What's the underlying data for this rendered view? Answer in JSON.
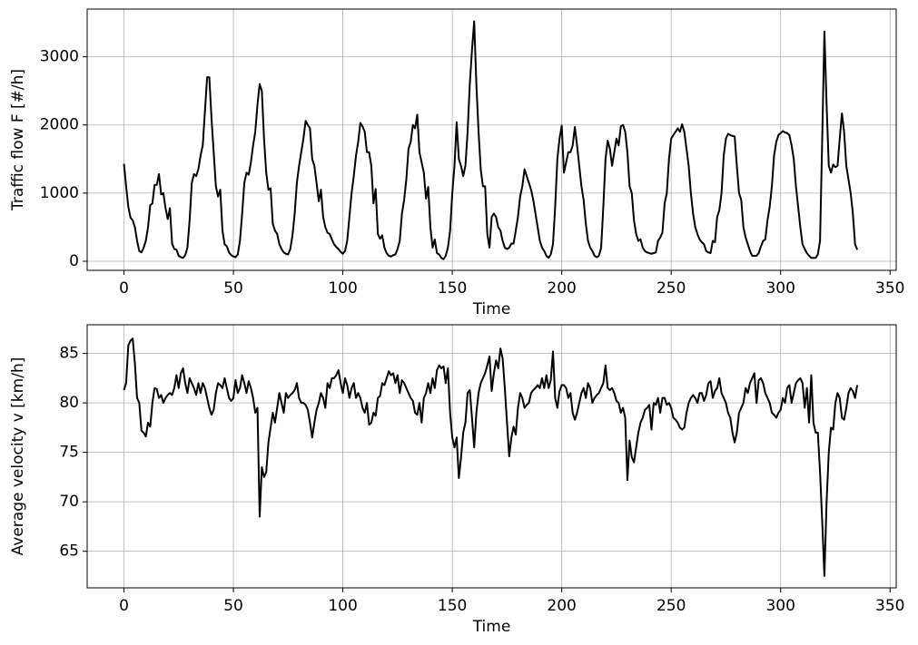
{
  "chart_data": [
    {
      "type": "line",
      "xlabel": "Time",
      "ylabel": "Traffic flow F [#/h]",
      "color": "#000000",
      "grid": true,
      "xlim": [
        -16.8,
        352.8
      ],
      "ylim": [
        -133,
        3700
      ],
      "xticks": [
        0,
        50,
        100,
        150,
        200,
        250,
        300,
        350
      ],
      "yticks": [
        0,
        1000,
        2000,
        3000
      ],
      "x": [
        0,
        1,
        2,
        3,
        4,
        5,
        6,
        7,
        8,
        9,
        10,
        11,
        12,
        13,
        14,
        15,
        16,
        17,
        18,
        19,
        20,
        21,
        22,
        23,
        24,
        25,
        26,
        27,
        28,
        29,
        30,
        31,
        32,
        33,
        34,
        35,
        36,
        37,
        38,
        39,
        40,
        41,
        42,
        43,
        44,
        45,
        46,
        47,
        48,
        49,
        50,
        51,
        52,
        53,
        54,
        55,
        56,
        57,
        58,
        59,
        60,
        61,
        62,
        63,
        64,
        65,
        66,
        67,
        68,
        69,
        70,
        71,
        72,
        73,
        74,
        75,
        76,
        77,
        78,
        79,
        80,
        81,
        82,
        83,
        84,
        85,
        86,
        87,
        88,
        89,
        90,
        91,
        92,
        93,
        94,
        95,
        96,
        97,
        98,
        99,
        100,
        101,
        102,
        103,
        104,
        105,
        106,
        107,
        108,
        109,
        110,
        111,
        112,
        113,
        114,
        115,
        116,
        117,
        118,
        119,
        120,
        121,
        122,
        123,
        124,
        125,
        126,
        127,
        128,
        129,
        130,
        131,
        132,
        133,
        134,
        135,
        136,
        137,
        138,
        139,
        140,
        141,
        142,
        143,
        144,
        145,
        146,
        147,
        148,
        149,
        150,
        151,
        152,
        153,
        154,
        155,
        156,
        157,
        158,
        159,
        160,
        161,
        162,
        163,
        164,
        165,
        166,
        167,
        168,
        169,
        170,
        171,
        172,
        173,
        174,
        175,
        176,
        177,
        178,
        179,
        180,
        181,
        182,
        183,
        184,
        185,
        186,
        187,
        188,
        189,
        190,
        191,
        192,
        193,
        194,
        195,
        196,
        197,
        198,
        199,
        200,
        201,
        202,
        203,
        204,
        205,
        206,
        207,
        208,
        209,
        210,
        211,
        212,
        213,
        214,
        215,
        216,
        217,
        218,
        219,
        220,
        221,
        222,
        223,
        224,
        225,
        226,
        227,
        228,
        229,
        230,
        231,
        232,
        233,
        234,
        235,
        236,
        237,
        238,
        239,
        240,
        241,
        242,
        243,
        244,
        245,
        246,
        247,
        248,
        249,
        250,
        251,
        252,
        253,
        254,
        255,
        256,
        257,
        258,
        259,
        260,
        261,
        262,
        263,
        264,
        265,
        266,
        267,
        268,
        269,
        270,
        271,
        272,
        273,
        274,
        275,
        276,
        277,
        278,
        279,
        280,
        281,
        282,
        283,
        284,
        285,
        286,
        287,
        288,
        289,
        290,
        291,
        292,
        293,
        294,
        295,
        296,
        297,
        298,
        299,
        300,
        301,
        302,
        303,
        304,
        305,
        306,
        307,
        308,
        309,
        310,
        311,
        312,
        313,
        314,
        315,
        316,
        317,
        318,
        319,
        320,
        321,
        322,
        323,
        324,
        325,
        326,
        327,
        328,
        329,
        330,
        331,
        332,
        333,
        334,
        335
      ],
      "values": [
        1430,
        1100,
        800,
        640,
        600,
        500,
        300,
        150,
        130,
        200,
        300,
        500,
        820,
        850,
        1120,
        1120,
        1280,
        980,
        1000,
        780,
        620,
        780,
        260,
        180,
        170,
        80,
        60,
        50,
        90,
        200,
        600,
        1150,
        1280,
        1250,
        1350,
        1550,
        1700,
        2200,
        2700,
        2700,
        2100,
        1600,
        1100,
        950,
        1050,
        450,
        250,
        220,
        130,
        90,
        70,
        60,
        100,
        300,
        700,
        1150,
        1300,
        1270,
        1450,
        1700,
        1900,
        2300,
        2600,
        2500,
        1800,
        1300,
        1050,
        1070,
        550,
        450,
        400,
        250,
        180,
        130,
        110,
        100,
        180,
        380,
        700,
        1150,
        1400,
        1600,
        1800,
        2060,
        2000,
        1950,
        1500,
        1400,
        1150,
        880,
        1050,
        650,
        500,
        420,
        400,
        320,
        250,
        210,
        180,
        140,
        110,
        150,
        300,
        650,
        1000,
        1250,
        1550,
        1750,
        2030,
        1980,
        1900,
        1600,
        1600,
        1400,
        850,
        1060,
        400,
        330,
        380,
        200,
        120,
        80,
        70,
        90,
        100,
        180,
        300,
        700,
        900,
        1200,
        1650,
        1750,
        2000,
        1950,
        2150,
        1600,
        1450,
        1300,
        920,
        1090,
        500,
        200,
        320,
        120,
        100,
        50,
        30,
        80,
        200,
        450,
        1000,
        1400,
        2040,
        1500,
        1400,
        1250,
        1400,
        1900,
        2600,
        3100,
        3520,
        2600,
        1900,
        1350,
        1100,
        1100,
        400,
        200,
        650,
        700,
        650,
        500,
        450,
        300,
        200,
        180,
        200,
        260,
        260,
        450,
        650,
        950,
        1100,
        1350,
        1250,
        1150,
        1050,
        900,
        700,
        500,
        300,
        200,
        150,
        80,
        50,
        100,
        250,
        800,
        1500,
        1800,
        1990,
        1300,
        1450,
        1600,
        1600,
        1700,
        1970,
        1700,
        1400,
        1100,
        900,
        550,
        300,
        200,
        150,
        80,
        60,
        80,
        200,
        800,
        1500,
        1770,
        1650,
        1400,
        1600,
        1800,
        1700,
        1980,
        2000,
        1900,
        1600,
        1100,
        1000,
        600,
        400,
        300,
        320,
        200,
        150,
        130,
        120,
        110,
        120,
        130,
        300,
        350,
        420,
        850,
        1000,
        1500,
        1800,
        1850,
        1900,
        1950,
        1900,
        2010,
        1900,
        1650,
        1400,
        1000,
        700,
        500,
        400,
        320,
        280,
        250,
        150,
        130,
        120,
        300,
        280,
        650,
        750,
        1000,
        1550,
        1800,
        1870,
        1850,
        1840,
        1830,
        1400,
        1000,
        900,
        500,
        350,
        250,
        150,
        80,
        80,
        80,
        120,
        220,
        300,
        320,
        600,
        800,
        1100,
        1550,
        1750,
        1850,
        1880,
        1910,
        1890,
        1880,
        1850,
        1700,
        1500,
        1100,
        800,
        500,
        250,
        180,
        120,
        80,
        50,
        50,
        50,
        100,
        300,
        1800,
        3370,
        2300,
        1400,
        1300,
        1420,
        1380,
        1400,
        1800,
        2170,
        1900,
        1400,
        1200,
        1000,
        700,
        250,
        170
      ]
    },
    {
      "type": "line",
      "xlabel": "Time",
      "ylabel": "Average velocity v [km/h]",
      "color": "#000000",
      "grid": true,
      "xlim": [
        -16.8,
        352.8
      ],
      "ylim": [
        61.3,
        87.9
      ],
      "xticks": [
        0,
        50,
        100,
        150,
        200,
        250,
        300,
        350
      ],
      "yticks": [
        65,
        70,
        75,
        80,
        85
      ],
      "x": [
        0,
        1,
        2,
        3,
        4,
        5,
        6,
        7,
        8,
        9,
        10,
        11,
        12,
        13,
        14,
        15,
        16,
        17,
        18,
        19,
        20,
        21,
        22,
        23,
        24,
        25,
        26,
        27,
        28,
        29,
        30,
        31,
        32,
        33,
        34,
        35,
        36,
        37,
        38,
        39,
        40,
        41,
        42,
        43,
        44,
        45,
        46,
        47,
        48,
        49,
        50,
        51,
        52,
        53,
        54,
        55,
        56,
        57,
        58,
        59,
        60,
        61,
        62,
        63,
        64,
        65,
        66,
        67,
        68,
        69,
        70,
        71,
        72,
        73,
        74,
        75,
        76,
        77,
        78,
        79,
        80,
        81,
        82,
        83,
        84,
        85,
        86,
        87,
        88,
        89,
        90,
        91,
        92,
        93,
        94,
        95,
        96,
        97,
        98,
        99,
        100,
        101,
        102,
        103,
        104,
        105,
        106,
        107,
        108,
        109,
        110,
        111,
        112,
        113,
        114,
        115,
        116,
        117,
        118,
        119,
        120,
        121,
        122,
        123,
        124,
        125,
        126,
        127,
        128,
        129,
        130,
        131,
        132,
        133,
        134,
        135,
        136,
        137,
        138,
        139,
        140,
        141,
        142,
        143,
        144,
        145,
        146,
        147,
        148,
        149,
        150,
        151,
        152,
        153,
        154,
        155,
        156,
        157,
        158,
        159,
        160,
        161,
        162,
        163,
        164,
        165,
        166,
        167,
        168,
        169,
        170,
        171,
        172,
        173,
        174,
        175,
        176,
        177,
        178,
        179,
        180,
        181,
        182,
        183,
        184,
        185,
        186,
        187,
        188,
        189,
        190,
        191,
        192,
        193,
        194,
        195,
        196,
        197,
        198,
        199,
        200,
        201,
        202,
        203,
        204,
        205,
        206,
        207,
        208,
        209,
        210,
        211,
        212,
        213,
        214,
        215,
        216,
        217,
        218,
        219,
        220,
        221,
        222,
        223,
        224,
        225,
        226,
        227,
        228,
        229,
        230,
        231,
        232,
        233,
        234,
        235,
        236,
        237,
        238,
        239,
        240,
        241,
        242,
        243,
        244,
        245,
        246,
        247,
        248,
        249,
        250,
        251,
        252,
        253,
        254,
        255,
        256,
        257,
        258,
        259,
        260,
        261,
        262,
        263,
        264,
        265,
        266,
        267,
        268,
        269,
        270,
        271,
        272,
        273,
        274,
        275,
        276,
        277,
        278,
        279,
        280,
        281,
        282,
        283,
        284,
        285,
        286,
        287,
        288,
        289,
        290,
        291,
        292,
        293,
        294,
        295,
        296,
        297,
        298,
        299,
        300,
        301,
        302,
        303,
        304,
        305,
        306,
        307,
        308,
        309,
        310,
        311,
        312,
        313,
        314,
        315,
        316,
        317,
        318,
        319,
        320,
        321,
        322,
        323,
        324,
        325,
        326,
        327,
        328,
        329,
        330,
        331,
        332,
        333,
        334,
        335
      ],
      "values": [
        81.3,
        82,
        85.8,
        86.3,
        86.5,
        84,
        80.5,
        80,
        77.2,
        77,
        76.6,
        78,
        77.6,
        80,
        81.5,
        81.4,
        80.5,
        80.8,
        80,
        80.5,
        80.8,
        81,
        80.8,
        81.5,
        82.8,
        81.5,
        83,
        83.5,
        82,
        81,
        82.5,
        82,
        81.5,
        80.8,
        82,
        81,
        82,
        81.5,
        80.5,
        79.5,
        78.8,
        79.3,
        81,
        82,
        81.8,
        81.5,
        82.5,
        81.5,
        80.5,
        80.2,
        80.5,
        82.3,
        81,
        81.5,
        82.8,
        82,
        81,
        82.2,
        81.5,
        80.5,
        79,
        79.5,
        68.5,
        73.5,
        72.5,
        73,
        76,
        77.5,
        79,
        78,
        79.5,
        81,
        80,
        79,
        81,
        80.5,
        80.8,
        81,
        81.3,
        82,
        80.5,
        80,
        80,
        79.8,
        79.3,
        78,
        76.5,
        78,
        79.3,
        80,
        81,
        80.5,
        79.5,
        82,
        81.5,
        82.5,
        82.5,
        82.8,
        83.3,
        82,
        81,
        82.5,
        81.8,
        80.5,
        81.5,
        82,
        80.5,
        81,
        80.5,
        79.5,
        79,
        80,
        77.8,
        78,
        79,
        78.7,
        80.5,
        80.7,
        82,
        81.8,
        82.5,
        83.2,
        82.8,
        83,
        82,
        82.8,
        81,
        82.3,
        82,
        81.5,
        81,
        80.5,
        80.2,
        79,
        78.8,
        80,
        78,
        80.5,
        81,
        82,
        81,
        82.5,
        81.5,
        83.3,
        83.8,
        83.5,
        83.7,
        82,
        83.5,
        79,
        76.5,
        75.5,
        76.5,
        72.4,
        74.5,
        77,
        78,
        81,
        81.3,
        78.5,
        75.5,
        79,
        81,
        82,
        82.5,
        83,
        83.8,
        84.7,
        81.2,
        83,
        84.3,
        83.5,
        85.5,
        84.5,
        81.5,
        78,
        74.6,
        76.5,
        77.6,
        76.8,
        79.5,
        81,
        80.5,
        79.5,
        79.8,
        80,
        81,
        81.3,
        81.5,
        81.8,
        81.5,
        82.5,
        81.5,
        82.8,
        81.5,
        82.3,
        85.2,
        80.5,
        79.5,
        81.2,
        81.8,
        81.8,
        81.5,
        80.5,
        81,
        79,
        78.3,
        79,
        80,
        81,
        81.5,
        80.5,
        82,
        81.5,
        80,
        80.5,
        80.8,
        81,
        81.5,
        82,
        83.8,
        81.5,
        81.3,
        81.5,
        81,
        80.2,
        80,
        79,
        79.5,
        78.5,
        72.2,
        76.2,
        74.5,
        74,
        75.5,
        77,
        78,
        78.5,
        79.3,
        79.5,
        79.8,
        77.3,
        80,
        79.8,
        80.5,
        79,
        80.5,
        80.5,
        79.8,
        80,
        79.5,
        78.5,
        78.3,
        78,
        77.5,
        77.3,
        77.5,
        79,
        80,
        80.5,
        80.8,
        80.5,
        80,
        81,
        81,
        80.2,
        80.8,
        82,
        82.2,
        80.5,
        81.2,
        81.5,
        82.5,
        81,
        80.5,
        80,
        79,
        78.5,
        77,
        76,
        77,
        79,
        79.5,
        80,
        81.5,
        81,
        82,
        82.5,
        83,
        80,
        82.3,
        82.5,
        82,
        81,
        80.5,
        80,
        79,
        78.8,
        78.5,
        79,
        79.3,
        80.5,
        80,
        81.5,
        81.8,
        80,
        81,
        82,
        82.3,
        82.5,
        82,
        79.5,
        81.5,
        78,
        82.8,
        78,
        77,
        77,
        73,
        68,
        62.5,
        70,
        75,
        77.5,
        77.3,
        80,
        81,
        80.5,
        78.5,
        78.3,
        79.5,
        81,
        81.5,
        81.2,
        80.5,
        81.8
      ]
    }
  ]
}
